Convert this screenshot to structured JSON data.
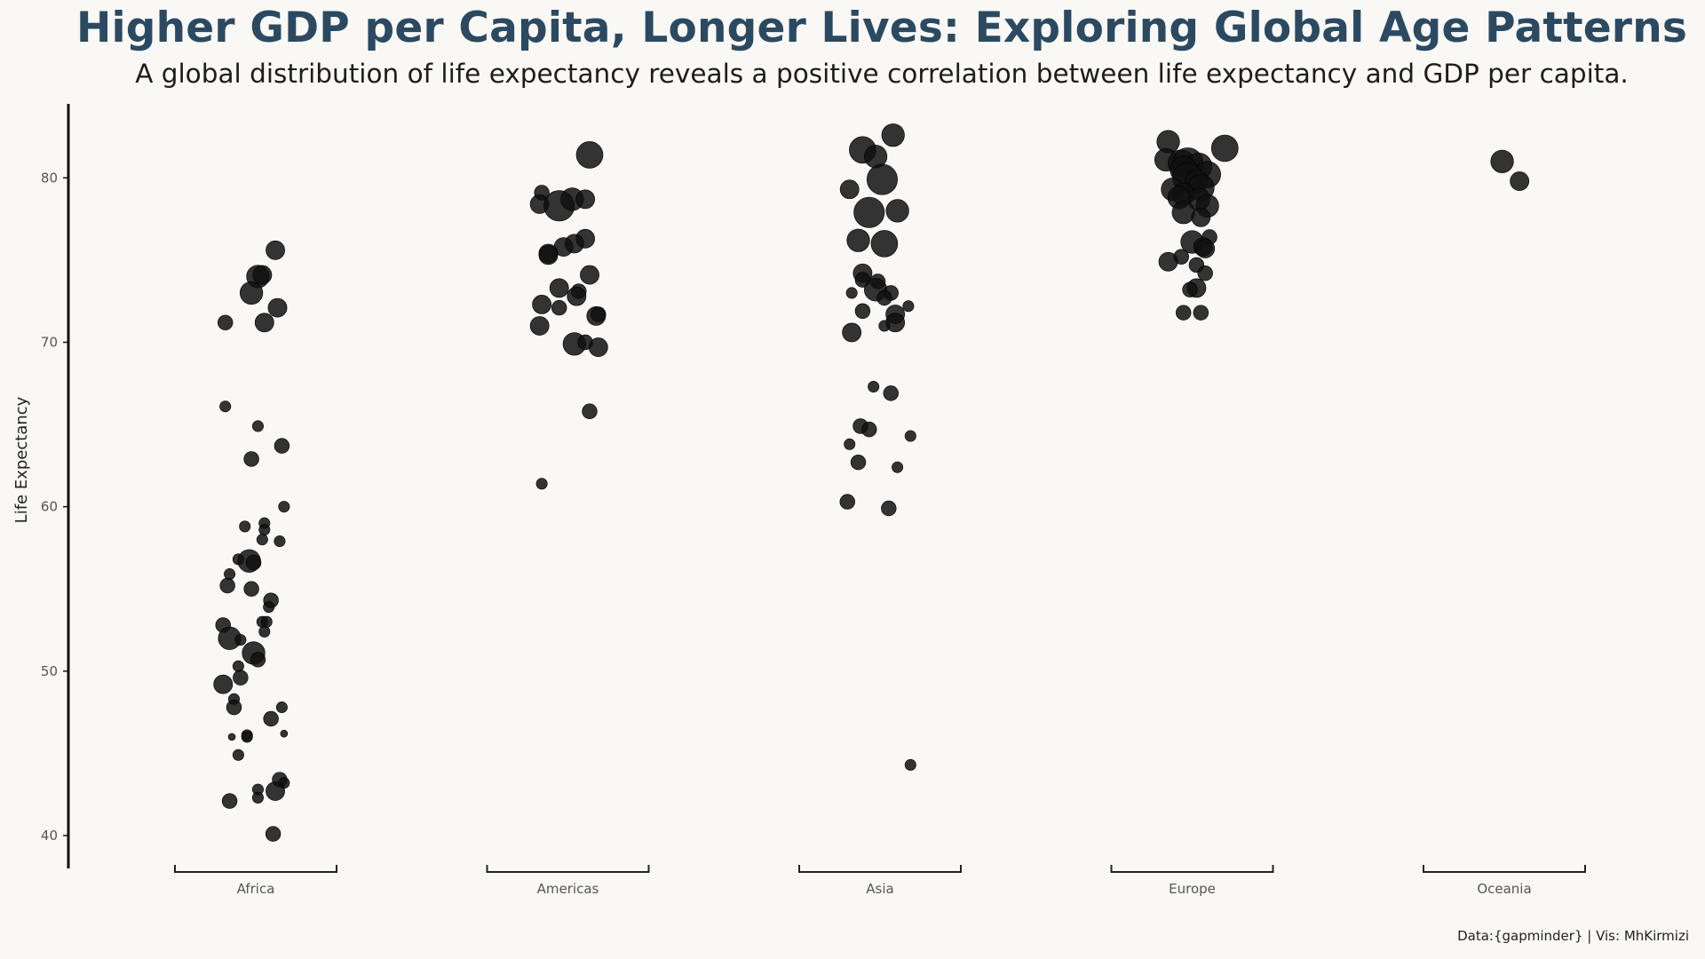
{
  "title": "Higher GDP per Capita, Longer Lives: Exploring Global Age Patterns",
  "subtitle": "A global distribution of life expectancy reveals a positive correlation between life expectancy and GDP per capita.",
  "caption": "Data:{gapminder} | Vis: MhKirmizi",
  "colors": {
    "background": "#f9f8f4",
    "title": "#2b4a62",
    "point": "#111111"
  },
  "chart_data": {
    "type": "scatter",
    "subtype": "jittered strip plot (point size ~ GDP per capita)",
    "title": "Higher GDP per Capita, Longer Lives: Exploring Global Age Patterns",
    "subtitle": "A global distribution of life expectancy reveals a positive correlation between life expectancy and GDP per capita.",
    "xlabel": "",
    "ylabel": "Life Expectancy",
    "categories": [
      "Africa",
      "Americas",
      "Asia",
      "Europe",
      "Oceania"
    ],
    "ylim": [
      38,
      84.5
    ],
    "yticks": [
      40,
      50,
      60,
      70,
      80
    ],
    "grid": false,
    "legend": "none",
    "series": [
      {
        "category": "Africa",
        "points": [
          {
            "jitter": 0.09,
            "y": 75.6,
            "size": 3
          },
          {
            "jitter": 0.01,
            "y": 74.0,
            "size": 4
          },
          {
            "jitter": 0.03,
            "y": 74.1,
            "size": 3
          },
          {
            "jitter": -0.02,
            "y": 73.0,
            "size": 4
          },
          {
            "jitter": 0.1,
            "y": 72.1,
            "size": 3
          },
          {
            "jitter": -0.14,
            "y": 71.2,
            "size": 2
          },
          {
            "jitter": 0.04,
            "y": 71.2,
            "size": 3
          },
          {
            "jitter": -0.14,
            "y": 66.1,
            "size": 1
          },
          {
            "jitter": 0.01,
            "y": 64.9,
            "size": 1
          },
          {
            "jitter": 0.12,
            "y": 63.7,
            "size": 2
          },
          {
            "jitter": -0.02,
            "y": 62.9,
            "size": 2
          },
          {
            "jitter": 0.13,
            "y": 60.0,
            "size": 1
          },
          {
            "jitter": -0.05,
            "y": 58.8,
            "size": 1
          },
          {
            "jitter": 0.04,
            "y": 59.0,
            "size": 1
          },
          {
            "jitter": 0.04,
            "y": 58.6,
            "size": 1
          },
          {
            "jitter": 0.03,
            "y": 58.0,
            "size": 1
          },
          {
            "jitter": 0.11,
            "y": 57.9,
            "size": 1
          },
          {
            "jitter": -0.08,
            "y": 56.8,
            "size": 1
          },
          {
            "jitter": -0.03,
            "y": 56.7,
            "size": 4
          },
          {
            "jitter": -0.01,
            "y": 56.6,
            "size": 2
          },
          {
            "jitter": -0.12,
            "y": 55.9,
            "size": 1
          },
          {
            "jitter": -0.13,
            "y": 55.2,
            "size": 2
          },
          {
            "jitter": -0.02,
            "y": 55.0,
            "size": 2
          },
          {
            "jitter": 0.07,
            "y": 54.3,
            "size": 2
          },
          {
            "jitter": 0.06,
            "y": 53.9,
            "size": 1
          },
          {
            "jitter": 0.03,
            "y": 53.0,
            "size": 1
          },
          {
            "jitter": 0.05,
            "y": 53.0,
            "size": 1
          },
          {
            "jitter": -0.15,
            "y": 52.8,
            "size": 2
          },
          {
            "jitter": 0.04,
            "y": 52.4,
            "size": 1
          },
          {
            "jitter": -0.12,
            "y": 52.0,
            "size": 4
          },
          {
            "jitter": -0.07,
            "y": 51.9,
            "size": 1
          },
          {
            "jitter": -0.01,
            "y": 51.1,
            "size": 4
          },
          {
            "jitter": 0.01,
            "y": 50.7,
            "size": 2
          },
          {
            "jitter": -0.08,
            "y": 50.3,
            "size": 1
          },
          {
            "jitter": -0.07,
            "y": 49.6,
            "size": 2
          },
          {
            "jitter": -0.15,
            "y": 49.2,
            "size": 3
          },
          {
            "jitter": -0.1,
            "y": 48.3,
            "size": 1
          },
          {
            "jitter": -0.1,
            "y": 47.8,
            "size": 2
          },
          {
            "jitter": 0.12,
            "y": 47.8,
            "size": 1
          },
          {
            "jitter": 0.07,
            "y": 47.1,
            "size": 2
          },
          {
            "jitter": 0.13,
            "y": 46.2,
            "size": 0
          },
          {
            "jitter": -0.04,
            "y": 46.1,
            "size": 1
          },
          {
            "jitter": -0.04,
            "y": 46.0,
            "size": 1
          },
          {
            "jitter": -0.11,
            "y": 46.0,
            "size": 0
          },
          {
            "jitter": -0.08,
            "y": 44.9,
            "size": 1
          },
          {
            "jitter": 0.11,
            "y": 43.4,
            "size": 2
          },
          {
            "jitter": 0.13,
            "y": 43.2,
            "size": 1
          },
          {
            "jitter": 0.01,
            "y": 42.8,
            "size": 1
          },
          {
            "jitter": 0.09,
            "y": 42.7,
            "size": 3
          },
          {
            "jitter": 0.01,
            "y": 42.3,
            "size": 1
          },
          {
            "jitter": -0.12,
            "y": 42.1,
            "size": 2
          },
          {
            "jitter": 0.08,
            "y": 40.1,
            "size": 2
          }
        ]
      },
      {
        "category": "Americas",
        "points": [
          {
            "jitter": 0.1,
            "y": 81.4,
            "size": 5
          },
          {
            "jitter": -0.12,
            "y": 79.1,
            "size": 2
          },
          {
            "jitter": -0.13,
            "y": 78.4,
            "size": 3
          },
          {
            "jitter": -0.04,
            "y": 78.3,
            "size": 6
          },
          {
            "jitter": 0.02,
            "y": 78.7,
            "size": 4
          },
          {
            "jitter": 0.08,
            "y": 78.7,
            "size": 3
          },
          {
            "jitter": 0.08,
            "y": 76.3,
            "size": 3
          },
          {
            "jitter": 0.03,
            "y": 76.0,
            "size": 3
          },
          {
            "jitter": -0.02,
            "y": 75.8,
            "size": 3
          },
          {
            "jitter": -0.09,
            "y": 75.4,
            "size": 3
          },
          {
            "jitter": -0.09,
            "y": 75.3,
            "size": 3
          },
          {
            "jitter": 0.1,
            "y": 74.1,
            "size": 3
          },
          {
            "jitter": -0.04,
            "y": 73.3,
            "size": 3
          },
          {
            "jitter": 0.05,
            "y": 73.1,
            "size": 2
          },
          {
            "jitter": 0.04,
            "y": 72.8,
            "size": 3
          },
          {
            "jitter": -0.12,
            "y": 72.3,
            "size": 3
          },
          {
            "jitter": -0.04,
            "y": 72.1,
            "size": 2
          },
          {
            "jitter": 0.13,
            "y": 71.6,
            "size": 3
          },
          {
            "jitter": 0.14,
            "y": 71.7,
            "size": 2
          },
          {
            "jitter": -0.13,
            "y": 71.0,
            "size": 3
          },
          {
            "jitter": 0.03,
            "y": 69.9,
            "size": 4
          },
          {
            "jitter": 0.08,
            "y": 70.0,
            "size": 2
          },
          {
            "jitter": 0.14,
            "y": 69.7,
            "size": 3
          },
          {
            "jitter": 0.1,
            "y": 65.8,
            "size": 2
          },
          {
            "jitter": -0.12,
            "y": 61.4,
            "size": 1
          }
        ]
      },
      {
        "category": "Asia",
        "points": [
          {
            "jitter": 0.06,
            "y": 82.6,
            "size": 4
          },
          {
            "jitter": -0.08,
            "y": 81.7,
            "size": 5
          },
          {
            "jitter": -0.02,
            "y": 81.3,
            "size": 4
          },
          {
            "jitter": 0.01,
            "y": 79.9,
            "size": 6
          },
          {
            "jitter": -0.14,
            "y": 79.3,
            "size": 3
          },
          {
            "jitter": -0.05,
            "y": 77.9,
            "size": 6
          },
          {
            "jitter": 0.08,
            "y": 78.0,
            "size": 4
          },
          {
            "jitter": -0.1,
            "y": 76.2,
            "size": 4
          },
          {
            "jitter": 0.02,
            "y": 76.0,
            "size": 5
          },
          {
            "jitter": -0.08,
            "y": 74.2,
            "size": 3
          },
          {
            "jitter": -0.08,
            "y": 73.8,
            "size": 2
          },
          {
            "jitter": -0.01,
            "y": 73.7,
            "size": 2
          },
          {
            "jitter": -0.02,
            "y": 73.2,
            "size": 4
          },
          {
            "jitter": 0.05,
            "y": 73.0,
            "size": 2
          },
          {
            "jitter": -0.13,
            "y": 73.0,
            "size": 1
          },
          {
            "jitter": 0.02,
            "y": 72.7,
            "size": 2
          },
          {
            "jitter": 0.13,
            "y": 72.2,
            "size": 1
          },
          {
            "jitter": -0.08,
            "y": 71.9,
            "size": 2
          },
          {
            "jitter": 0.07,
            "y": 71.7,
            "size": 3
          },
          {
            "jitter": 0.07,
            "y": 71.2,
            "size": 3
          },
          {
            "jitter": 0.02,
            "y": 71.0,
            "size": 1
          },
          {
            "jitter": -0.13,
            "y": 70.6,
            "size": 3
          },
          {
            "jitter": -0.03,
            "y": 67.3,
            "size": 1
          },
          {
            "jitter": 0.05,
            "y": 66.9,
            "size": 2
          },
          {
            "jitter": -0.09,
            "y": 64.9,
            "size": 2
          },
          {
            "jitter": -0.05,
            "y": 64.7,
            "size": 2
          },
          {
            "jitter": 0.14,
            "y": 64.3,
            "size": 1
          },
          {
            "jitter": -0.14,
            "y": 63.8,
            "size": 1
          },
          {
            "jitter": -0.1,
            "y": 62.7,
            "size": 2
          },
          {
            "jitter": 0.08,
            "y": 62.4,
            "size": 1
          },
          {
            "jitter": -0.15,
            "y": 60.3,
            "size": 2
          },
          {
            "jitter": 0.04,
            "y": 59.9,
            "size": 2
          },
          {
            "jitter": 0.14,
            "y": 44.3,
            "size": 1
          }
        ]
      },
      {
        "category": "Europe",
        "points": [
          {
            "jitter": -0.11,
            "y": 82.2,
            "size": 4
          },
          {
            "jitter": 0.15,
            "y": 81.8,
            "size": 5
          },
          {
            "jitter": -0.12,
            "y": 81.1,
            "size": 4
          },
          {
            "jitter": -0.05,
            "y": 80.9,
            "size": 5
          },
          {
            "jitter": -0.02,
            "y": 80.9,
            "size": 6
          },
          {
            "jitter": 0.03,
            "y": 80.7,
            "size": 5
          },
          {
            "jitter": -0.04,
            "y": 80.5,
            "size": 5
          },
          {
            "jitter": 0.07,
            "y": 80.2,
            "size": 5
          },
          {
            "jitter": -0.02,
            "y": 80.0,
            "size": 6
          },
          {
            "jitter": 0.02,
            "y": 79.8,
            "size": 4
          },
          {
            "jitter": -0.09,
            "y": 79.3,
            "size": 4
          },
          {
            "jitter": 0.04,
            "y": 79.4,
            "size": 5
          },
          {
            "jitter": -0.04,
            "y": 79.0,
            "size": 4
          },
          {
            "jitter": 0.03,
            "y": 78.7,
            "size": 4
          },
          {
            "jitter": -0.06,
            "y": 78.8,
            "size": 4
          },
          {
            "jitter": 0.07,
            "y": 78.3,
            "size": 4
          },
          {
            "jitter": -0.04,
            "y": 77.9,
            "size": 4
          },
          {
            "jitter": 0.04,
            "y": 77.6,
            "size": 3
          },
          {
            "jitter": 0.08,
            "y": 76.4,
            "size": 2
          },
          {
            "jitter": 0.0,
            "y": 76.1,
            "size": 4
          },
          {
            "jitter": 0.05,
            "y": 75.8,
            "size": 3
          },
          {
            "jitter": 0.06,
            "y": 75.7,
            "size": 3
          },
          {
            "jitter": -0.05,
            "y": 75.2,
            "size": 2
          },
          {
            "jitter": -0.11,
            "y": 74.9,
            "size": 3
          },
          {
            "jitter": 0.02,
            "y": 74.7,
            "size": 2
          },
          {
            "jitter": 0.06,
            "y": 74.2,
            "size": 2
          },
          {
            "jitter": 0.02,
            "y": 73.3,
            "size": 3
          },
          {
            "jitter": -0.01,
            "y": 73.2,
            "size": 2
          },
          {
            "jitter": -0.04,
            "y": 71.8,
            "size": 2
          },
          {
            "jitter": 0.04,
            "y": 71.8,
            "size": 2
          }
        ]
      },
      {
        "category": "Oceania",
        "points": [
          {
            "jitter": -0.01,
            "y": 81.0,
            "size": 4
          },
          {
            "jitter": 0.07,
            "y": 79.8,
            "size": 3
          }
        ]
      }
    ]
  }
}
